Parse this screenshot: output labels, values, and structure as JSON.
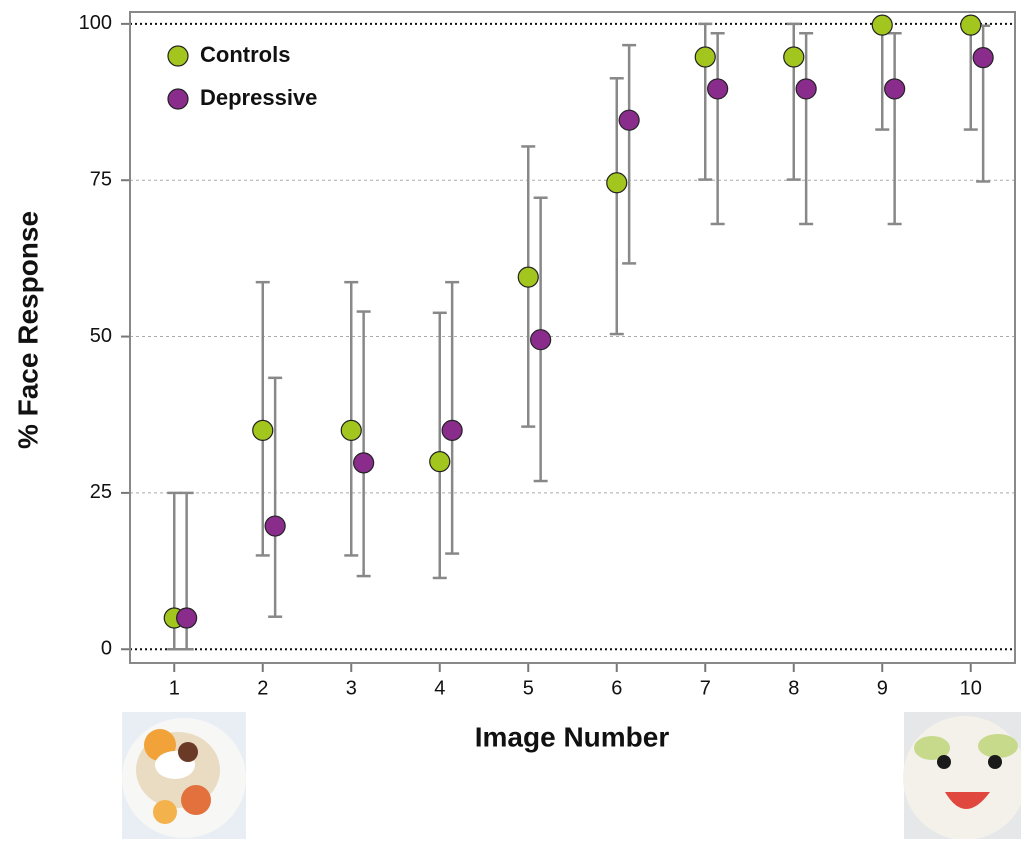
{
  "chart_data": {
    "type": "errorbar",
    "x_label": "Image Number",
    "y_label": "% Face Response",
    "x": [
      1,
      2,
      3,
      4,
      5,
      6,
      7,
      8,
      9,
      10
    ],
    "xlim": [
      0.5,
      10.5
    ],
    "xticks": [
      1,
      2,
      3,
      4,
      5,
      6,
      7,
      8,
      9,
      10
    ],
    "ylim": [
      -2.2,
      101.9
    ],
    "yticks": [
      0,
      25,
      50,
      75,
      100
    ],
    "grid": true,
    "legend": "top-left",
    "series": [
      {
        "name": "Controls",
        "color": "#a3c61f",
        "values": [
          5,
          35,
          35,
          30,
          59.5,
          74.6,
          94.7,
          94.7,
          99.8,
          99.8
        ],
        "error_low": [
          0,
          15,
          15,
          11.4,
          35.6,
          50.4,
          75.1,
          75.1,
          83.1,
          83.1
        ],
        "error_high": [
          25,
          58.7,
          58.7,
          53.8,
          80.4,
          91.3,
          100,
          100,
          100,
          100
        ]
      },
      {
        "name": "Depressive",
        "color": "#8a2c8c",
        "values": [
          5,
          19.7,
          29.8,
          35,
          49.5,
          84.6,
          89.6,
          89.6,
          89.6,
          94.6
        ],
        "error_low": [
          0,
          5.2,
          11.7,
          15.3,
          26.9,
          61.7,
          68,
          68,
          68,
          74.8
        ],
        "error_high": [
          25,
          43.4,
          54,
          58.7,
          72.2,
          96.6,
          98.5,
          98.5,
          98.5,
          99.7
        ]
      }
    ]
  }
}
